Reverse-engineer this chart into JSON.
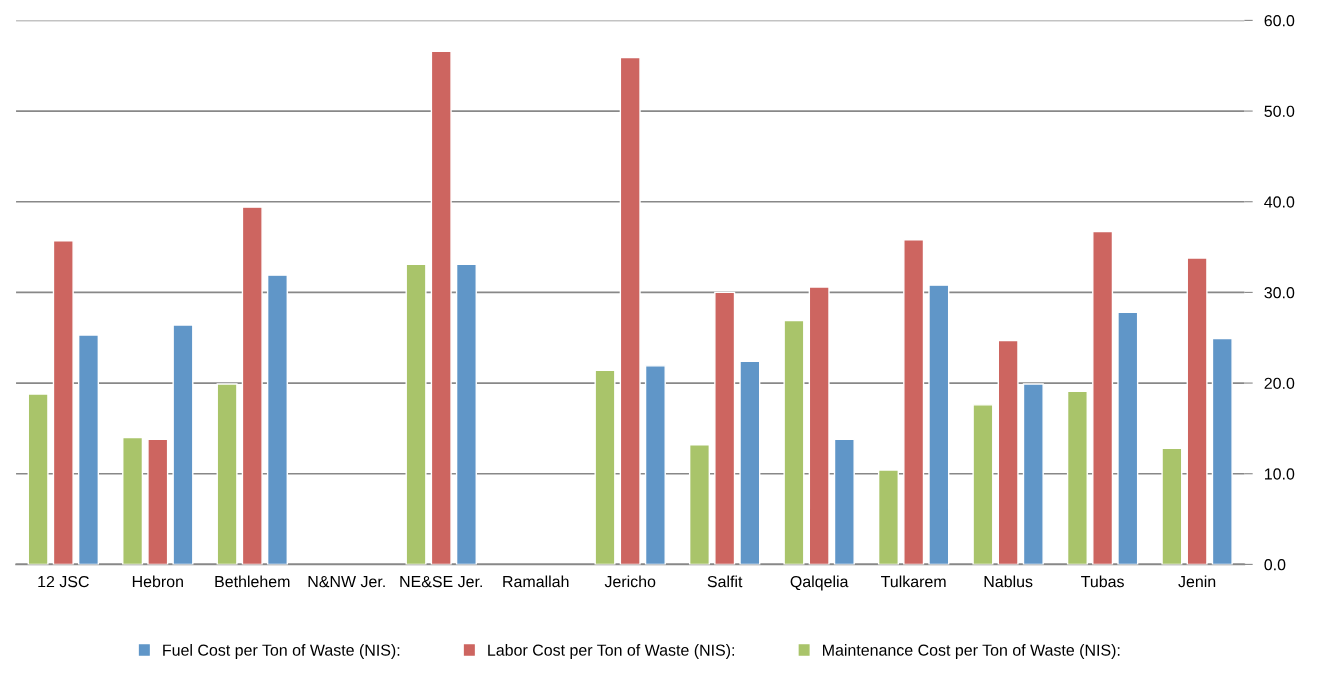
{
  "chart_data": {
    "type": "bar",
    "categories": [
      "12 JSC",
      "Hebron",
      "Bethlehem",
      "N&NW Jer.",
      "NE&SE Jer.",
      "Ramallah",
      "Jericho",
      "Salfit",
      "Qalqelia",
      "Tulkarem",
      "Nablus",
      "Tubas",
      "Jenin"
    ],
    "series": [
      {
        "name": "Maintenance Cost per Ton of Waste (NIS):",
        "color": "#a9c46a",
        "values": [
          18.8,
          14.0,
          19.9,
          null,
          33.1,
          null,
          21.4,
          13.2,
          26.9,
          10.4,
          17.6,
          19.1,
          12.8
        ]
      },
      {
        "name": "Labor Cost per Ton of Waste (NIS):",
        "color": "#cd6560",
        "values": [
          35.7,
          13.8,
          39.4,
          null,
          56.6,
          null,
          55.9,
          30.0,
          30.6,
          35.8,
          24.7,
          36.7,
          33.8
        ]
      },
      {
        "name": "Fuel Cost per Ton of Waste (NIS):",
        "color": "#6096c8",
        "values": [
          25.3,
          26.4,
          31.9,
          null,
          33.1,
          null,
          21.9,
          22.4,
          13.8,
          30.8,
          19.9,
          27.8,
          24.9
        ]
      }
    ],
    "ylim": [
      0,
      60
    ],
    "yticks": [
      {
        "value": 0,
        "label": "0.0"
      },
      {
        "value": 10,
        "label": "10.0"
      },
      {
        "value": 20,
        "label": "20.0"
      },
      {
        "value": 30,
        "label": "30.0"
      },
      {
        "value": 40,
        "label": "40.0"
      },
      {
        "value": 50,
        "label": "50.0"
      },
      {
        "value": 60,
        "label": "60.0"
      }
    ],
    "grid": "y",
    "legend": "bottom"
  }
}
